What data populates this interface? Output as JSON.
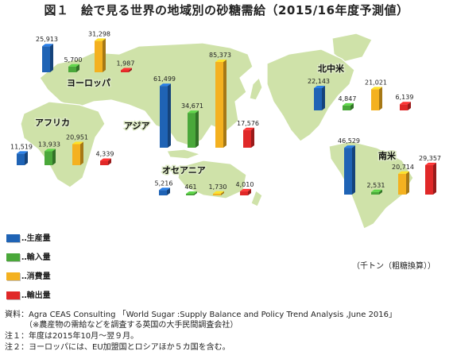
{
  "title": "図１　絵で見る世界の地域別の砂糖需給（2015/16年度予測値）",
  "unit": "（千トン（粗糖換算））",
  "colors": {
    "production": "#1f63b5",
    "import": "#4aa83a",
    "consumption": "#f4b120",
    "export": "#e02828",
    "land": "#cfe2a9",
    "land_edge": "#ffffff"
  },
  "legend": [
    {
      "key": "production",
      "label": "‥生産量"
    },
    {
      "key": "import",
      "label": "‥輸入量"
    },
    {
      "key": "consumption",
      "label": "‥消費量"
    },
    {
      "key": "export",
      "label": "‥輸出量"
    }
  ],
  "notes": [
    "資料：Agra CEAS Consulting 「World Sugar :Supply Balance and Policy Trend Analysis ,June 2016」",
    "　　　（※農産物の需給などを調査する英国の大手民間調査会社）",
    "注１：年度は2015年10月～翌９月。",
    "注２：ヨーロッパには、EU加盟国とロシアほか５カ国を含む。"
  ],
  "chart_data": {
    "type": "bar",
    "title": "図１　絵で見る世界の地域別の砂糖需給（2015/16年度予測値）",
    "unit": "千トン（粗糖換算）",
    "categories": [
      "ヨーロッパ",
      "アフリカ",
      "アジア",
      "オセアニア",
      "北中米",
      "南米"
    ],
    "series": [
      {
        "name": "生産量",
        "key": "production",
        "values": [
          25913,
          11519,
          61499,
          5216,
          22143,
          46529
        ]
      },
      {
        "name": "輸入量",
        "key": "import",
        "values": [
          5700,
          13933,
          34671,
          461,
          4847,
          2531
        ]
      },
      {
        "name": "消費量",
        "key": "consumption",
        "values": [
          31298,
          20951,
          85373,
          1730,
          21021,
          20714
        ]
      },
      {
        "name": "輸出量",
        "key": "export",
        "values": [
          1987,
          4339,
          17576,
          4010,
          6139,
          29357
        ]
      }
    ],
    "labels": [
      [
        "25,913",
        "5,700",
        "31,298",
        "1,987"
      ],
      [
        "11,519",
        "13,933",
        "20,951",
        "4,339"
      ],
      [
        "61,499",
        "34,671",
        "85,373",
        "17,576"
      ],
      [
        "5,216",
        "461",
        "1,730",
        "4,010"
      ],
      [
        "22,143",
        "4,847",
        "21,021",
        "6,139"
      ],
      [
        "46,529",
        "2,531",
        "20,714",
        "29,357"
      ]
    ],
    "legend_position": "bottom-left",
    "grid": false
  }
}
